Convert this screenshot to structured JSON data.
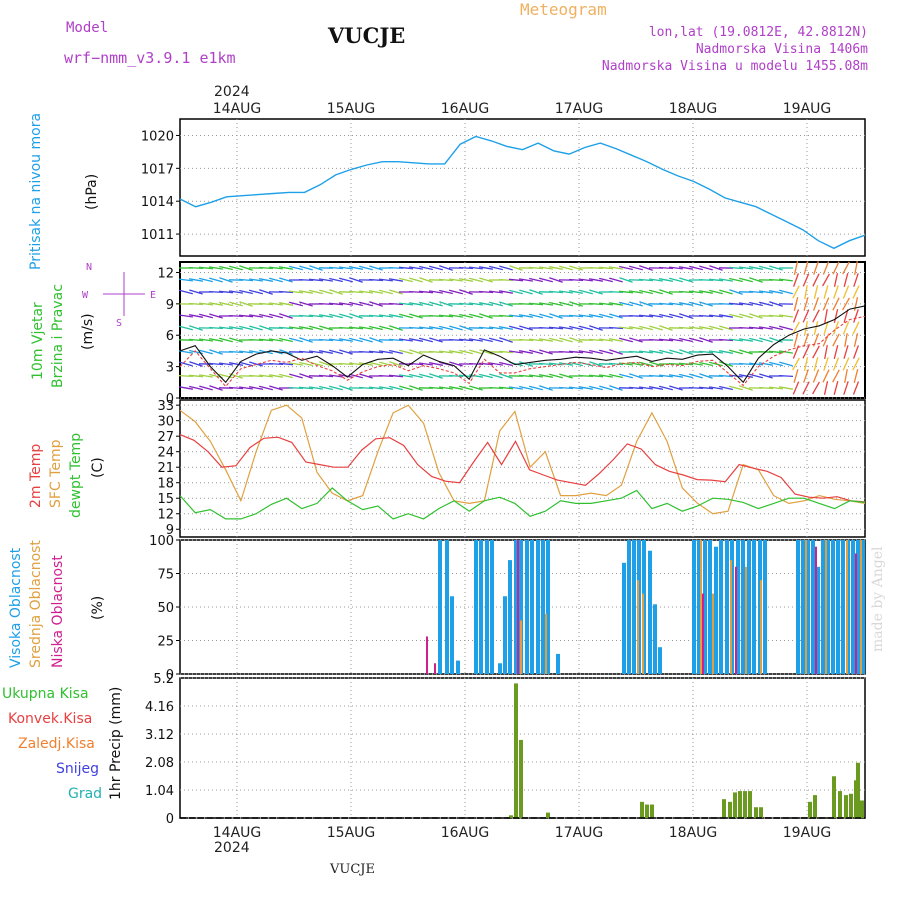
{
  "header": {
    "model_label": "Model",
    "model_name": "wrf−nmm_v3.9.1  e1km",
    "station": "VUCJE",
    "meteogram": "Meteogram",
    "lonlat": "lon,lat (19.0812E, 42.8812N)",
    "altitude": "Nadmorska Visina 1406m",
    "model_altitude": "Nadmorska Visina u modelu 1455.08m",
    "footer_station": "VUCJE",
    "watermark": "made by Angel"
  },
  "colors": {
    "pressure": "#1ea0e8",
    "temp2m": "#e84040",
    "sfc": "#e0a040",
    "dewpt": "#30c030",
    "high_cloud": "#1ea0e8",
    "mid_cloud": "#e0a040",
    "low_cloud": "#d02090",
    "total_precip": "#30c030",
    "convective": "#e84040",
    "frozen": "#f08030",
    "snow": "#4040e0",
    "hail": "#20b0b0",
    "wind_gust": "#111111",
    "wind_speed": "#e84040"
  },
  "chart_data": [
    {
      "type": "line",
      "panel": "pressure",
      "ylabel_lines": [
        "Pritisak na nivou mora",
        "(hPa)"
      ],
      "yticks": [
        "1020",
        "1017",
        "1014",
        "1011"
      ],
      "ylim": [
        1009,
        1021.5
      ],
      "series": [
        {
          "values": [
            1014.2,
            1013.5,
            1013.9,
            1014.4,
            1014.5,
            1014.6,
            1014.7,
            1014.8,
            1014.8,
            1015.5,
            1016.4,
            1016.9,
            1017.3,
            1017.6,
            1017.6,
            1017.5,
            1017.4,
            1017.4,
            1019.2,
            1019.9,
            1019.5,
            1019.0,
            1018.7,
            1019.3,
            1018.6,
            1018.3,
            1018.9,
            1019.3,
            1018.8,
            1018.2,
            1017.6,
            1016.9,
            1016.3,
            1015.8,
            1015.1,
            1014.3,
            1013.9,
            1013.5,
            1012.8,
            1012.1,
            1011.4,
            1010.4,
            1009.7,
            1010.4,
            1010.9
          ]
        }
      ]
    },
    {
      "type": "line",
      "panel": "wind",
      "ylabel_lines": [
        "10m Vjetar",
        "Brzina i Pravac",
        "(m/s)"
      ],
      "yticks": [
        "12",
        "9",
        "6",
        "3",
        "0"
      ],
      "ylim": [
        0,
        13
      ],
      "compass": {
        "north": "N",
        "east": "E",
        "west": "W",
        "south": "S"
      },
      "series": [
        {
          "values": [
            3,
            4.5,
            2.8,
            1.1,
            2.8,
            3.2,
            3.6,
            3.4,
            3.8,
            3.1,
            2.6,
            1.7,
            2.5,
            3.0,
            3.2,
            2.6,
            3.1,
            2.8,
            2.4,
            1.4,
            3.7,
            2.4,
            2.4,
            2.8,
            3.0,
            3.2,
            3.4,
            3.2,
            2.9,
            3.3,
            3.4,
            3.0,
            3.2,
            3.1,
            3.5,
            3.6,
            2.4,
            1.2,
            3.0,
            4.0,
            4.6,
            5.0,
            5.2,
            6.5,
            7.5,
            7.8
          ]
        },
        {
          "values": [
            4.5,
            5,
            3,
            1.5,
            3.5,
            4.2,
            4.5,
            4.3,
            3.6,
            4,
            3.1,
            2,
            3.2,
            3.7,
            3.8,
            3.1,
            4.1,
            3.5,
            3.1,
            1.8,
            4.6,
            4,
            3.2,
            3.4,
            3.6,
            3.7,
            3.9,
            3.8,
            3.6,
            3.8,
            4,
            3.5,
            3.8,
            3.7,
            4.1,
            4.2,
            3,
            1.5,
            3.8,
            5.1,
            6,
            6.6,
            6.9,
            7.5,
            8.5,
            8.8
          ]
        }
      ]
    },
    {
      "type": "line",
      "panel": "temperature",
      "ylabel_lines": [
        "2m Temp",
        "SFC Temp",
        "dewpt Temp",
        "(C)"
      ],
      "yticks": [
        "33",
        "30",
        "27",
        "24",
        "21",
        "18",
        "15",
        "12",
        "9"
      ],
      "ylim": [
        7.5,
        34
      ],
      "series": [
        {
          "name": "2m Temp",
          "values": [
            27.3,
            26.2,
            24.0,
            21.0,
            21.3,
            24.8,
            26.6,
            26.8,
            25.8,
            22.0,
            21.5,
            21.0,
            21.0,
            24.3,
            26.5,
            26.7,
            25.2,
            21.5,
            19.2,
            18.3,
            18.0,
            22.0,
            25.8,
            21.5,
            26.0,
            20.5,
            19.5,
            18.5,
            18.0,
            17.5,
            19.8,
            22.5,
            25.5,
            24.5,
            21.5,
            20.2,
            19.5,
            18.6,
            18.5,
            18.2,
            21.5,
            20.8,
            20.2,
            19.0,
            15.8,
            15.2,
            15.0,
            15.3,
            14.5,
            14.3
          ]
        },
        {
          "name": "SFC Temp",
          "values": [
            32.0,
            29.8,
            26.0,
            20.5,
            14.5,
            24.0,
            32.0,
            33.0,
            30.5,
            20.0,
            16.0,
            14.5,
            15.5,
            24.0,
            31.5,
            33.0,
            29.5,
            20.0,
            14.5,
            14.0,
            14.5,
            28.0,
            31.8,
            21.0,
            24.0,
            15.5,
            15.5,
            16.0,
            15.5,
            17.5,
            26.0,
            31.5,
            26.0,
            17.0,
            14.0,
            12.0,
            12.5,
            21.5,
            20.5,
            15.5,
            14.0,
            14.5,
            15.5,
            14.8,
            14.5,
            14.0
          ]
        },
        {
          "name": "dewpt Temp",
          "values": [
            15.5,
            12.2,
            12.8,
            11.0,
            11.0,
            12.0,
            13.8,
            15.0,
            13.0,
            14.0,
            17.0,
            14.5,
            12.8,
            13.5,
            11.0,
            12.0,
            11.0,
            13.0,
            14.5,
            12.5,
            14.5,
            15.2,
            14.0,
            11.5,
            12.5,
            14.5,
            14.0,
            14.0,
            14.5,
            15.0,
            16.5,
            13.0,
            14.0,
            12.5,
            13.5,
            15.0,
            14.8,
            14.2,
            13.0,
            14.0,
            15.0,
            15.0,
            14.0,
            13.0,
            14.5,
            14.2
          ]
        }
      ]
    },
    {
      "type": "bar",
      "panel": "clouds",
      "ylabel_lines": [
        "Visoka Oblacnost",
        "Srednja Oblacnost",
        "Niska Oblacnost",
        "(%)"
      ],
      "yticks": [
        "100",
        "75",
        "50",
        "25",
        "0"
      ],
      "ylim": [
        0,
        100
      ],
      "series": [
        {
          "name": "Visoka Oblacnost",
          "values": [
            0,
            0,
            0,
            0,
            0,
            0,
            0,
            0,
            0,
            0,
            0,
            0,
            0,
            0,
            0,
            0,
            0,
            0,
            0,
            0,
            0,
            0,
            0,
            0,
            0,
            0,
            0,
            0,
            0,
            0,
            0,
            0,
            0,
            0,
            0,
            0,
            0,
            0,
            0,
            0,
            0,
            0,
            0,
            0,
            0,
            0,
            0,
            0,
            0,
            0,
            0,
            0,
            0,
            0,
            0,
            0,
            0,
            0,
            0,
            0,
            0,
            0,
            0,
            0,
            0,
            0,
            0,
            0,
            0,
            0,
            0,
            0,
            0,
            0,
            0,
            0,
            0,
            0,
            0,
            0,
            0,
            0,
            0,
            0,
            0,
            0,
            0,
            0,
            0,
            0,
            0,
            0,
            0,
            0,
            0,
            0,
            0,
            0,
            0,
            0,
            0,
            0,
            0,
            0,
            0,
            0,
            0,
            0,
            0,
            0,
            0,
            0,
            0,
            0,
            0,
            0,
            0,
            0,
            0,
            0,
            0,
            0,
            0,
            0,
            0,
            0,
            0,
            0,
            0,
            0,
            0,
            0,
            0,
            0,
            0,
            0,
            0,
            0,
            0,
            0,
            0,
            0,
            0,
            0,
            0,
            0,
            0,
            0,
            0,
            0,
            0,
            0,
            0,
            0,
            0,
            0,
            0,
            0,
            0,
            0,
            0,
            0,
            0,
            0,
            0,
            0,
            0,
            0,
            0,
            0,
            0,
            0,
            0,
            0,
            0,
            0,
            0,
            0,
            0,
            0,
            0,
            0,
            0,
            0,
            0,
            0,
            0,
            0,
            0,
            0,
            0,
            0,
            0,
            0,
            0,
            0,
            0,
            0,
            0,
            0,
            0,
            0,
            0,
            0,
            0,
            0,
            0,
            0,
            0,
            0,
            0,
            0,
            0,
            0,
            0,
            0,
            0,
            0,
            0,
            0,
            0,
            0,
            0,
            0,
            0,
            0,
            0,
            0,
            0,
            0,
            0,
            0,
            0,
            0,
            0,
            0,
            0,
            0,
            0,
            0,
            0,
            0,
            0,
            0,
            0,
            0,
            0,
            0,
            0,
            0,
            0,
            0,
            0,
            0,
            0,
            0,
            0,
            0,
            0,
            0,
            0,
            0,
            0,
            0,
            0,
            0,
            0,
            0,
            0,
            0,
            0,
            0,
            0,
            0,
            0,
            0,
            0,
            0,
            0,
            0,
            0
          ]
        }
      ]
    },
    {
      "type": "bar",
      "panel": "precipitation",
      "ylabel_lines": [
        "1hr Precip (mm)"
      ],
      "yticks": [
        "5.2",
        "4.16",
        "3.12",
        "2.08",
        "1.04",
        "0"
      ],
      "ylim": [
        0,
        5.2
      ],
      "legend": [
        "Ukupna Kisa",
        "Konvek.Kisa",
        "Zaledj.Kisa",
        "Snijeg",
        "Grad"
      ],
      "series": [
        {
          "name": "Ukupna Kisa",
          "values": []
        }
      ]
    }
  ],
  "axis": {
    "year": "2024",
    "days": [
      "14AUG",
      "15AUG",
      "16AUG",
      "17AUG",
      "18AUG",
      "19AUG"
    ]
  }
}
